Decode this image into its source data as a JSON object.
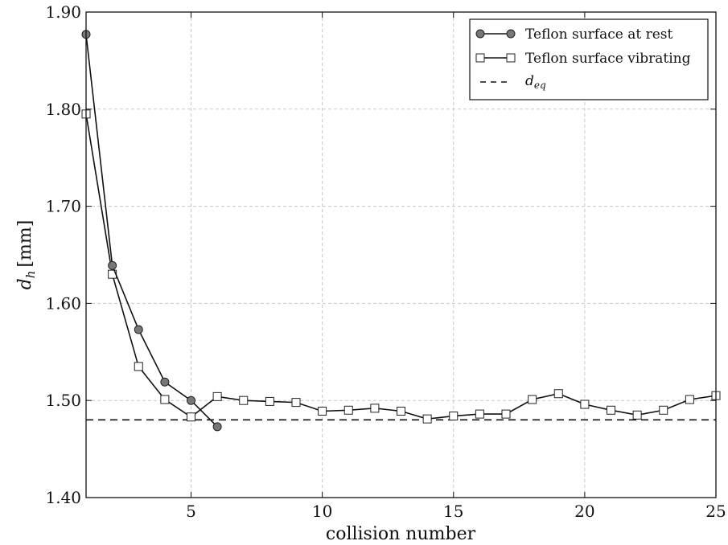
{
  "chart_data": {
    "type": "line",
    "title": "",
    "xlabel": "collision number",
    "ylabel": {
      "main": "d",
      "sub": "h",
      "unit": "[mm]"
    },
    "xlim": [
      1,
      25
    ],
    "ylim": [
      1.4,
      1.9
    ],
    "xticks": [
      5,
      10,
      15,
      20,
      25
    ],
    "yticks": [
      1.4,
      1.5,
      1.6,
      1.7,
      1.8,
      1.9
    ],
    "ytick_labels": [
      "1.40",
      "1.50",
      "1.60",
      "1.70",
      "1.80",
      "1.90"
    ],
    "grid": true,
    "legend_position": "top-right",
    "series": [
      {
        "name": "Teflon surface at rest",
        "marker": "circle",
        "color": "#777777",
        "x": [
          1,
          2,
          3,
          4,
          5,
          6
        ],
        "y": [
          1.877,
          1.639,
          1.573,
          1.519,
          1.5,
          1.473
        ]
      },
      {
        "name": "Teflon surface vibrating",
        "marker": "square",
        "color": "#ffffff",
        "x": [
          1,
          2,
          3,
          4,
          5,
          6,
          7,
          8,
          9,
          10,
          11,
          12,
          13,
          14,
          15,
          16,
          17,
          18,
          19,
          20,
          21,
          22,
          23,
          24,
          25
        ],
        "y": [
          1.795,
          1.63,
          1.535,
          1.501,
          1.483,
          1.504,
          1.5,
          1.499,
          1.498,
          1.489,
          1.49,
          1.492,
          1.489,
          1.481,
          1.484,
          1.486,
          1.486,
          1.501,
          1.507,
          1.496,
          1.49,
          1.485,
          1.49,
          1.501,
          1.505
        ]
      }
    ],
    "reference_line": {
      "name_main": "d",
      "name_sub": "eq",
      "y": 1.48,
      "style": "dashed"
    }
  }
}
